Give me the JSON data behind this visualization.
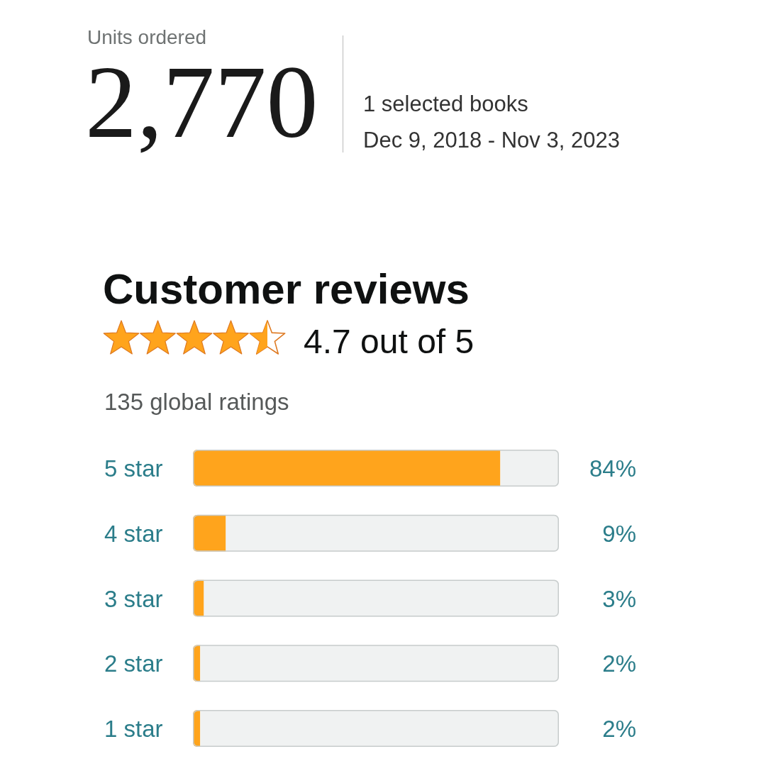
{
  "chart_data": [
    {
      "type": "other",
      "title": "Units ordered",
      "annotations": [
        "2,770",
        "1 selected books",
        "Dec 9, 2018 - Nov 3, 2023"
      ]
    },
    {
      "type": "bar",
      "orientation": "horizontal",
      "title": "Customer reviews",
      "subtitle": "4.7 out of 5",
      "annotations": [
        "135 global ratings"
      ],
      "categories": [
        "5 star",
        "4 star",
        "3 star",
        "2 star",
        "1 star"
      ],
      "values": [
        84,
        9,
        3,
        2,
        2
      ],
      "color": "#ffa41c",
      "xlim": [
        0,
        100
      ],
      "value_labels": [
        "84%",
        "9%",
        "3%",
        "2%",
        "2%"
      ]
    }
  ]
}
